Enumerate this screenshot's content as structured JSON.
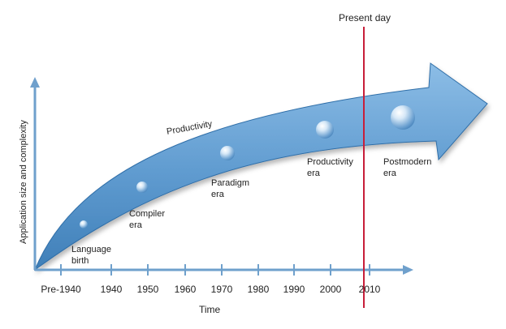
{
  "present_day_label": "Present day",
  "productivity_label": "Productivity",
  "y_axis_label": "Application size and complexity",
  "x_axis_label": "Time",
  "x_ticks": [
    "Pre-1940",
    "1940",
    "1950",
    "1960",
    "1970",
    "1980",
    "1990",
    "2000",
    "2010"
  ],
  "eras": [
    {
      "line1": "Language",
      "line2": "birth"
    },
    {
      "line1": "Compiler",
      "line2": "era"
    },
    {
      "line1": "Paradigm",
      "line2": "era"
    },
    {
      "line1": "Productivity",
      "line2": "era"
    },
    {
      "line1": "Postmodern",
      "line2": "era"
    }
  ],
  "colors": {
    "arrow_fill": "#6fa7d6",
    "arrow_dark": "#3f7fb8",
    "axis": "#6fa0cc",
    "present_line": "#c81e3a"
  }
}
